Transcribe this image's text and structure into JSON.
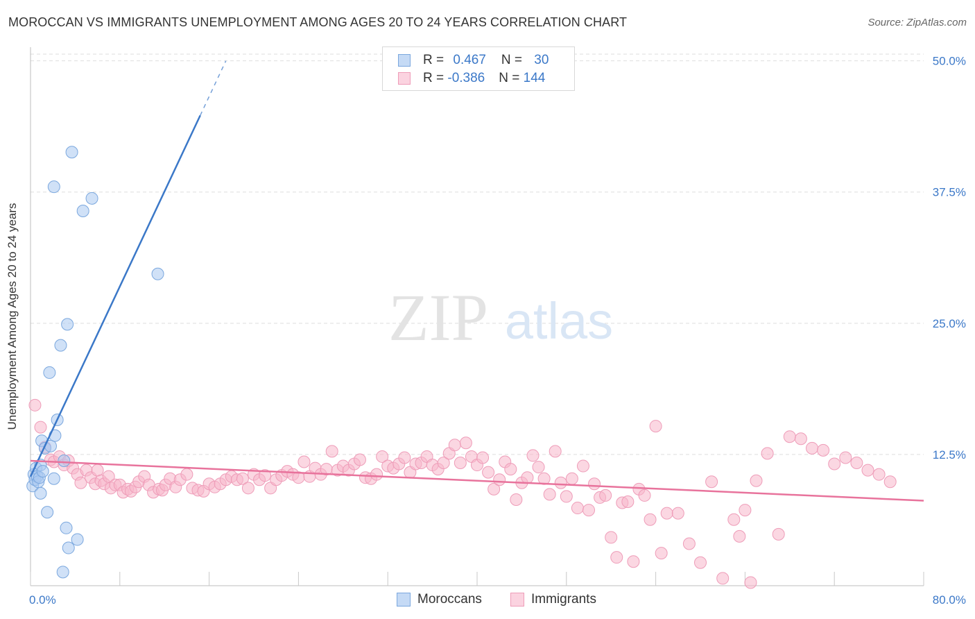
{
  "title": "MOROCCAN VS IMMIGRANTS UNEMPLOYMENT AMONG AGES 20 TO 24 YEARS CORRELATION CHART",
  "source": "Source: ZipAtlas.com",
  "watermark": {
    "zip": "ZIP",
    "atlas": "atlas"
  },
  "legend": {
    "rows": [
      {
        "r_label": "R = ",
        "r_value": "0.467",
        "n_label": "N = ",
        "n_value": "30",
        "color": "#a9c8f0"
      },
      {
        "r_label": "R = ",
        "r_value": "-0.386",
        "n_label": "N = ",
        "n_value": "144",
        "color": "#f7b6cb"
      }
    ]
  },
  "bottom_legend": [
    {
      "label": "Moroccans",
      "color": "#a9c8f0"
    },
    {
      "label": "Immigrants",
      "color": "#f7b6cb"
    }
  ],
  "chart_data": {
    "type": "scatter",
    "title": "MOROCCAN VS IMMIGRANTS UNEMPLOYMENT AMONG AGES 20 TO 24 YEARS CORRELATION CHART",
    "xlabel": "",
    "ylabel": "Unemployment Among Ages 20 to 24 years",
    "xlim": [
      0,
      80
    ],
    "ylim": [
      0,
      51.3
    ],
    "x_ticks_labels": [
      "0.0%",
      "80.0%"
    ],
    "y_ticks": [
      12.5,
      25.0,
      37.5,
      50.0
    ],
    "y_ticks_labels": [
      "12.5%",
      "25.0%",
      "37.5%",
      "50.0%"
    ],
    "grid": true,
    "legend_position": "top-center",
    "series": [
      {
        "name": "Moroccans",
        "color": "#3b78c8",
        "fill": "#a9c8f0",
        "trend": {
          "x0": 0,
          "y0": 10.4,
          "x1": 17.5,
          "y1": 50.0,
          "solid_until_x": 15.2
        },
        "points": [
          [
            0.2,
            9.5
          ],
          [
            0.3,
            10.6
          ],
          [
            0.4,
            10.1
          ],
          [
            0.5,
            11.2
          ],
          [
            0.6,
            10.4
          ],
          [
            0.7,
            9.9
          ],
          [
            0.8,
            10.3
          ],
          [
            0.9,
            11.5
          ],
          [
            0.9,
            8.8
          ],
          [
            1.0,
            13.8
          ],
          [
            1.1,
            10.9
          ],
          [
            1.3,
            13.1
          ],
          [
            1.5,
            7.0
          ],
          [
            1.7,
            20.3
          ],
          [
            1.8,
            13.3
          ],
          [
            2.1,
            10.2
          ],
          [
            2.2,
            14.3
          ],
          [
            2.4,
            15.8
          ],
          [
            2.7,
            22.9
          ],
          [
            3.0,
            11.9
          ],
          [
            3.2,
            5.5
          ],
          [
            3.3,
            24.9
          ],
          [
            3.4,
            3.6
          ],
          [
            3.7,
            41.3
          ],
          [
            2.9,
            1.3
          ],
          [
            2.1,
            38.0
          ],
          [
            4.2,
            4.4
          ],
          [
            4.7,
            35.7
          ],
          [
            5.5,
            36.9
          ],
          [
            11.4,
            29.7
          ]
        ]
      },
      {
        "name": "Immigrants",
        "color": "#e8739c",
        "fill": "#f7b6cb",
        "trend": {
          "x0": 0,
          "y0": 11.9,
          "x1": 80,
          "y1": 8.1
        },
        "points": [
          [
            0.4,
            17.2
          ],
          [
            0.9,
            15.1
          ],
          [
            1.3,
            13.2
          ],
          [
            1.8,
            12.0
          ],
          [
            2.1,
            11.8
          ],
          [
            2.6,
            12.3
          ],
          [
            3.0,
            11.5
          ],
          [
            3.4,
            11.9
          ],
          [
            3.8,
            11.2
          ],
          [
            4.2,
            10.6
          ],
          [
            4.5,
            9.8
          ],
          [
            5.0,
            11.0
          ],
          [
            5.4,
            10.3
          ],
          [
            5.8,
            9.7
          ],
          [
            6.0,
            11.0
          ],
          [
            6.3,
            10.0
          ],
          [
            6.6,
            9.7
          ],
          [
            7.0,
            10.4
          ],
          [
            7.2,
            9.3
          ],
          [
            7.6,
            9.6
          ],
          [
            8.0,
            9.6
          ],
          [
            8.3,
            8.9
          ],
          [
            8.7,
            9.2
          ],
          [
            9.0,
            9.0
          ],
          [
            9.4,
            9.4
          ],
          [
            9.7,
            9.9
          ],
          [
            10.2,
            10.4
          ],
          [
            10.6,
            9.6
          ],
          [
            11.0,
            8.9
          ],
          [
            11.5,
            9.2
          ],
          [
            11.8,
            9.1
          ],
          [
            12.1,
            9.6
          ],
          [
            12.5,
            10.2
          ],
          [
            13.0,
            9.4
          ],
          [
            13.4,
            10.1
          ],
          [
            14.0,
            10.6
          ],
          [
            14.5,
            9.3
          ],
          [
            15.0,
            9.1
          ],
          [
            15.5,
            9.0
          ],
          [
            16.0,
            9.7
          ],
          [
            16.5,
            9.4
          ],
          [
            17.0,
            9.7
          ],
          [
            17.5,
            10.1
          ],
          [
            18.0,
            10.4
          ],
          [
            18.5,
            10.1
          ],
          [
            19.0,
            10.2
          ],
          [
            19.5,
            9.3
          ],
          [
            20.0,
            10.6
          ],
          [
            20.5,
            10.1
          ],
          [
            21.0,
            10.5
          ],
          [
            21.5,
            9.3
          ],
          [
            22.0,
            10.1
          ],
          [
            22.5,
            10.5
          ],
          [
            23.0,
            10.9
          ],
          [
            23.5,
            10.6
          ],
          [
            24.0,
            10.3
          ],
          [
            24.5,
            11.8
          ],
          [
            25.0,
            10.4
          ],
          [
            25.5,
            11.2
          ],
          [
            26.0,
            10.6
          ],
          [
            26.5,
            11.1
          ],
          [
            27.0,
            12.8
          ],
          [
            27.5,
            11.0
          ],
          [
            28.0,
            11.4
          ],
          [
            28.5,
            11.0
          ],
          [
            29.0,
            11.6
          ],
          [
            29.5,
            12.0
          ],
          [
            30.0,
            10.3
          ],
          [
            30.5,
            10.2
          ],
          [
            31.0,
            10.6
          ],
          [
            31.5,
            12.3
          ],
          [
            32.0,
            11.4
          ],
          [
            32.5,
            11.2
          ],
          [
            33.0,
            11.6
          ],
          [
            33.5,
            12.2
          ],
          [
            34.0,
            10.8
          ],
          [
            34.5,
            11.6
          ],
          [
            35.0,
            11.7
          ],
          [
            35.5,
            12.3
          ],
          [
            36.0,
            11.5
          ],
          [
            36.5,
            11.1
          ],
          [
            37.0,
            11.7
          ],
          [
            37.5,
            12.6
          ],
          [
            38.0,
            13.4
          ],
          [
            38.5,
            11.7
          ],
          [
            39.0,
            13.6
          ],
          [
            39.5,
            12.3
          ],
          [
            40.0,
            11.5
          ],
          [
            40.5,
            12.2
          ],
          [
            41.0,
            10.8
          ],
          [
            41.5,
            9.2
          ],
          [
            42.0,
            10.1
          ],
          [
            42.5,
            11.8
          ],
          [
            43.0,
            11.1
          ],
          [
            43.5,
            8.2
          ],
          [
            44.0,
            9.8
          ],
          [
            44.5,
            10.3
          ],
          [
            45.0,
            12.4
          ],
          [
            45.5,
            11.3
          ],
          [
            46.0,
            10.2
          ],
          [
            46.5,
            8.7
          ],
          [
            47.0,
            12.8
          ],
          [
            47.5,
            9.8
          ],
          [
            48.0,
            8.5
          ],
          [
            48.5,
            10.2
          ],
          [
            49.0,
            7.4
          ],
          [
            49.5,
            11.4
          ],
          [
            50.0,
            7.2
          ],
          [
            50.5,
            9.7
          ],
          [
            51.0,
            8.4
          ],
          [
            51.5,
            8.6
          ],
          [
            52.0,
            4.6
          ],
          [
            52.5,
            2.7
          ],
          [
            53.0,
            7.9
          ],
          [
            53.5,
            8.0
          ],
          [
            54.0,
            2.3
          ],
          [
            54.5,
            9.2
          ],
          [
            55.0,
            8.6
          ],
          [
            55.5,
            6.3
          ],
          [
            56.0,
            15.2
          ],
          [
            56.5,
            3.1
          ],
          [
            57.0,
            6.9
          ],
          [
            58.0,
            6.9
          ],
          [
            59.0,
            4.0
          ],
          [
            60.0,
            2.2
          ],
          [
            61.0,
            9.9
          ],
          [
            62.0,
            0.7
          ],
          [
            63.0,
            6.3
          ],
          [
            63.5,
            4.7
          ],
          [
            64.0,
            7.2
          ],
          [
            64.5,
            0.3
          ],
          [
            65.0,
            10.0
          ],
          [
            66.0,
            12.6
          ],
          [
            67.0,
            4.9
          ],
          [
            68.0,
            14.2
          ],
          [
            69.0,
            14.0
          ],
          [
            70.0,
            13.1
          ],
          [
            71.0,
            12.9
          ],
          [
            72.0,
            11.6
          ],
          [
            73.0,
            12.2
          ],
          [
            74.0,
            11.7
          ],
          [
            75.0,
            11.0
          ],
          [
            76.0,
            10.6
          ],
          [
            77.0,
            9.9
          ]
        ]
      }
    ]
  }
}
